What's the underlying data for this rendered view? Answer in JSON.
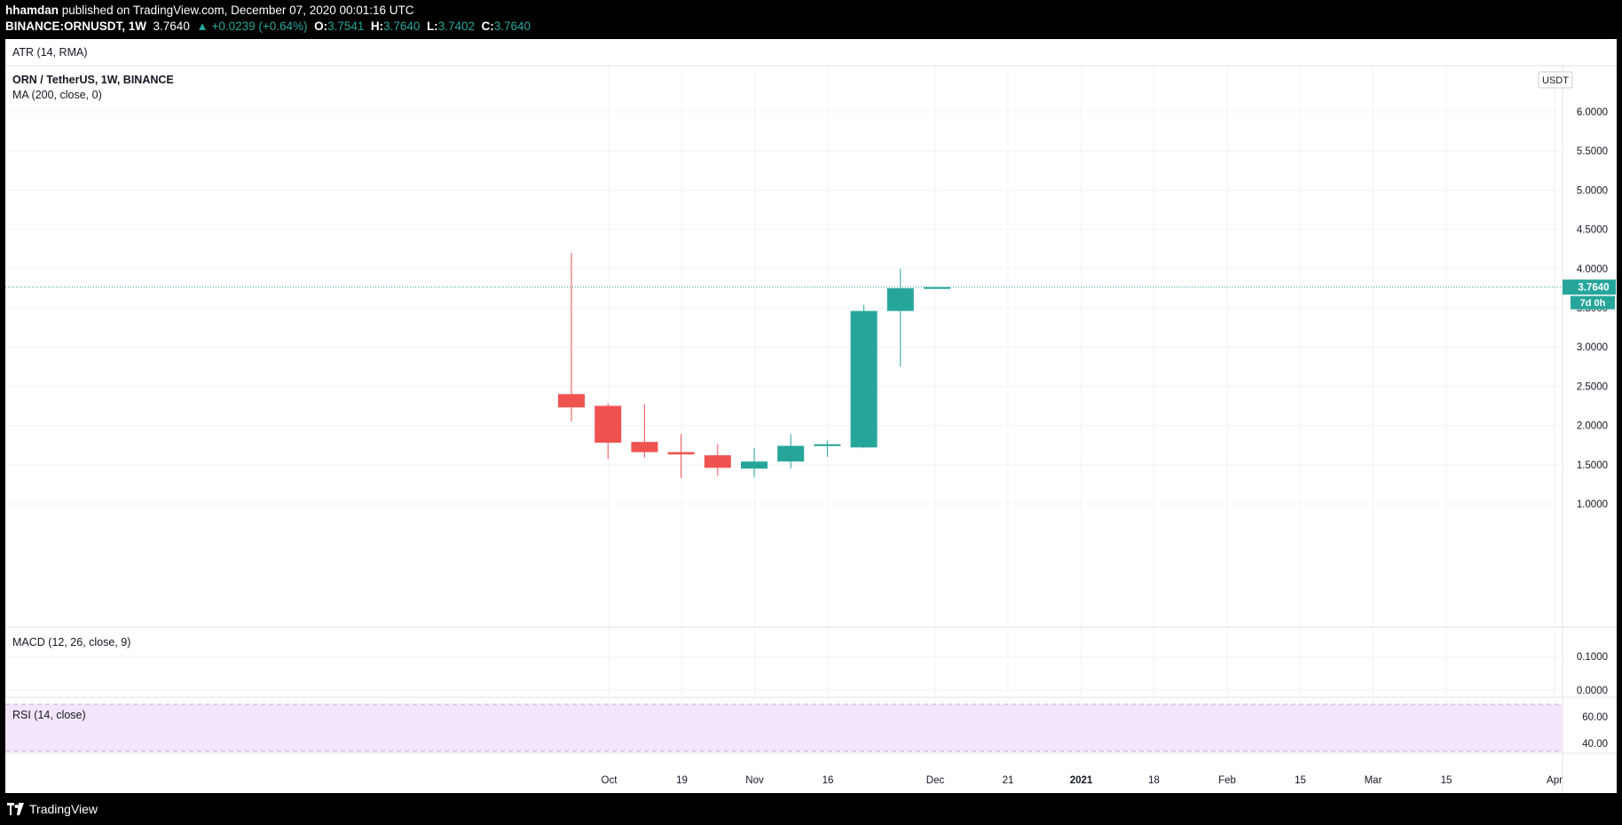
{
  "header": {
    "published_user": "hhamdan",
    "published_text": "published on TradingView.com, December 07, 2020 00:01:16 UTC",
    "symbol": "BINANCE:ORNUSDT, 1W",
    "last_price": "3.7640",
    "change": "▲ +0.0239 (+0.64%)",
    "ohlc": {
      "o_label": "O:",
      "o": "3.7541",
      "h_label": "H:",
      "h": "3.7640",
      "l_label": "L:",
      "l": "3.7402",
      "c_label": "C:",
      "c": "3.7640"
    }
  },
  "panes": {
    "atr_label": "ATR (14, RMA)",
    "main_title": "ORN / TetherUS, 1W, BINANCE",
    "ma_label": "MA (200, close, 0)",
    "macd_label": "MACD (12, 26, close, 9)",
    "rsi_label": "RSI (14, close)",
    "currency": "USDT",
    "macd_ticks": [
      "0.1000",
      "0.0000"
    ],
    "rsi_ticks": [
      "60.00",
      "40.00"
    ]
  },
  "price_badge": {
    "value": "3.7640",
    "countdown": "7d 0h"
  },
  "footer": {
    "brand": "TradingView"
  },
  "colors": {
    "up": "#26a69a",
    "down": "#ef5350",
    "rsi_band": "#f3e5fc",
    "grid": "#f0f3fa"
  },
  "chart_data": {
    "type": "candlestick",
    "ylim": [
      0.58,
      6.7
    ],
    "y_ticks": [
      1.0,
      1.5,
      2.0,
      2.5,
      3.0,
      3.5,
      4.0,
      4.5,
      5.0,
      5.5,
      6.0
    ],
    "y_tick_labels": [
      "1.0000",
      "1.5000",
      "2.0000",
      "2.5000",
      "3.0000",
      "3.5000",
      "4.0000",
      "4.5000",
      "5.0000",
      "5.5000",
      "6.0000"
    ],
    "x_tick_labels": [
      "Oct",
      "19",
      "Nov",
      "16",
      "Dec",
      "21",
      "2021",
      "18",
      "Feb",
      "15",
      "Mar",
      "15",
      "Apr"
    ],
    "candles": [
      {
        "o": 2.4,
        "h": 4.2,
        "l": 2.05,
        "c": 2.23
      },
      {
        "o": 2.25,
        "h": 2.28,
        "l": 1.57,
        "c": 1.78
      },
      {
        "o": 1.79,
        "h": 2.27,
        "l": 1.59,
        "c": 1.66
      },
      {
        "o": 1.66,
        "h": 1.89,
        "l": 1.33,
        "c": 1.63
      },
      {
        "o": 1.62,
        "h": 1.76,
        "l": 1.36,
        "c": 1.46
      },
      {
        "o": 1.45,
        "h": 1.71,
        "l": 1.34,
        "c": 1.54
      },
      {
        "o": 1.54,
        "h": 1.89,
        "l": 1.45,
        "c": 1.74
      },
      {
        "o": 1.74,
        "h": 1.81,
        "l": 1.6,
        "c": 1.76
      },
      {
        "o": 1.72,
        "h": 3.54,
        "l": 1.71,
        "c": 3.46
      },
      {
        "o": 3.46,
        "h": 4.0,
        "l": 2.75,
        "c": 3.75
      },
      {
        "o": 3.7541,
        "h": 3.764,
        "l": 3.7402,
        "c": 3.764
      }
    ],
    "last_price": 3.764
  }
}
